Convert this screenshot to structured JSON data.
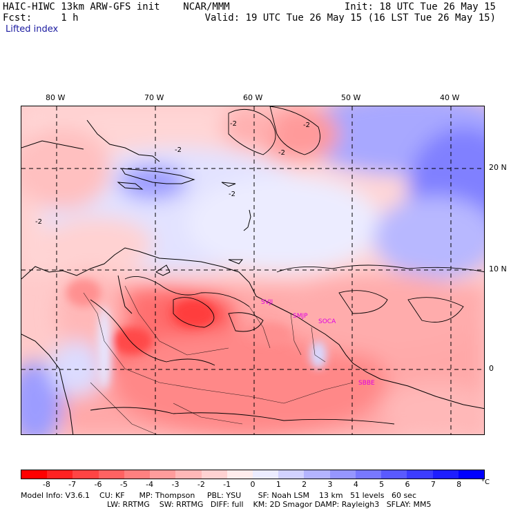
{
  "header": {
    "left_line1": "HAIC-HIWC 13km ARW-GFS init    NCAR/MMM",
    "left_line2": "Fcst:     1 h",
    "right_line1": "Init: 18 UTC Tue 26 May 15",
    "right_line2": "Valid: 19 UTC Tue 26 May 15 (16 LST Tue 26 May 15)",
    "field": "Lifted index"
  },
  "axes": {
    "lon_labels": [
      "80 W",
      "70 W",
      "60 W",
      "50 W",
      "40 W"
    ],
    "lat_labels": [
      "20 N",
      "10 N",
      "0"
    ]
  },
  "stations": [
    "SVJI",
    "SMJP",
    "SOCA",
    "SBBE"
  ],
  "contour_labels": [
    "-2",
    "-2",
    "-2",
    "-2",
    "-2",
    "-2"
  ],
  "colorbar": {
    "labels": [
      "-8",
      "-7",
      "-6",
      "-5",
      "-4",
      "-3",
      "-2",
      "-1",
      "0",
      "1",
      "2",
      "3",
      "4",
      "5",
      "6",
      "7",
      "8"
    ],
    "unit": "°C",
    "colors": [
      "#ff0000",
      "#ff2222",
      "#ff4444",
      "#ff6262",
      "#ff8080",
      "#ff9c9c",
      "#ffb8b8",
      "#ffd2d2",
      "#ffecec",
      "#ececff",
      "#d2d2ff",
      "#b4b4ff",
      "#9696ff",
      "#7878ff",
      "#5a5aff",
      "#3c3cff",
      "#1e1eff",
      "#0000ff"
    ]
  },
  "model_info": {
    "line1": "Model Info: V3.6.1    CU: KF      MP: Thompson     PBL: YSU       SF: Noah LSM    13 km   51 levels   60 sec",
    "line2": "LW: RRTMG    SW: RRTMG   DIFF: full    KM: 2D Smagor DAMP: Rayleigh3   SFLAY: MM5"
  }
}
